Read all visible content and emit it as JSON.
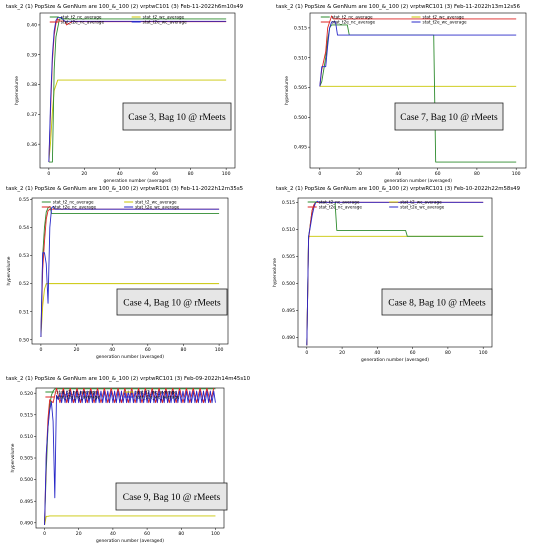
{
  "figure": {
    "legend_labels": [
      "stat_t2_nc_average",
      "stat_t2_wc_average",
      "stat_t2e_nc_average",
      "stat_t2e_wc_average"
    ],
    "colors": {
      "green": "#2e8b2e",
      "yellow": "#c9c600",
      "red": "#dd2222",
      "blue": "#2828c8"
    }
  },
  "chart_data": [
    {
      "type": "line",
      "title": "task_2 (1) PopSize & GenNum are 100_&_100 (2) vrptwC101 (3) Feb-11-2022h6m10s49",
      "xlabel": "generation number (averaged)",
      "ylabel": "hypervolume",
      "xlim": [
        -5,
        105
      ],
      "ylim": [
        0.352,
        0.404
      ],
      "xticks": [
        0,
        20,
        40,
        60,
        80,
        100
      ],
      "yticks": [
        0.36,
        0.37,
        0.38,
        0.39,
        0.4
      ],
      "xtick_labels": [
        "0",
        "20",
        "40",
        "60",
        "80",
        "100"
      ],
      "ytick_labels": [
        "0.36",
        "0.37",
        "0.38",
        "0.39",
        "0.40"
      ],
      "annotation": "Case 3, Bag 10 @ rMeets",
      "series": [
        {
          "name": "stat_t2_nc_average",
          "color": "green",
          "x": [
            0,
            2,
            3,
            4,
            6,
            100
          ],
          "y": [
            0.354,
            0.354,
            0.385,
            0.396,
            0.402,
            0.402
          ]
        },
        {
          "name": "stat_t2_wc_average",
          "color": "yellow",
          "x": [
            0,
            1,
            2,
            3,
            5,
            100
          ],
          "y": [
            0.354,
            0.361,
            0.371,
            0.378,
            0.3815,
            0.3815
          ]
        },
        {
          "name": "stat_t2e_nc_average",
          "color": "red",
          "x": [
            0,
            1,
            2,
            3,
            4,
            5,
            6,
            9,
            10,
            13,
            100
          ],
          "y": [
            0.354,
            0.372,
            0.388,
            0.3965,
            0.4005,
            0.402,
            0.4013,
            0.4013,
            0.4,
            0.4011,
            0.4011
          ]
        },
        {
          "name": "stat_t2e_wc_average",
          "color": "blue",
          "x": [
            0,
            1,
            2,
            3,
            4,
            5,
            7,
            8,
            9,
            100
          ],
          "y": [
            0.354,
            0.375,
            0.39,
            0.398,
            0.4015,
            0.4025,
            0.4025,
            0.4018,
            0.4012,
            0.4012
          ]
        }
      ]
    },
    {
      "type": "line",
      "title": "task_2 (1) PopSize & GenNum are 100_&_100 (2) vrptwRC101 (3) Feb-11-2022h13m12s56",
      "xlabel": "generation number (averaged)",
      "ylabel": "hypervolume",
      "xlim": [
        -5,
        105
      ],
      "ylim": [
        0.4915,
        0.5175
      ],
      "xticks": [
        0,
        20,
        40,
        60,
        80,
        100
      ],
      "yticks": [
        0.495,
        0.5,
        0.505,
        0.51,
        0.515
      ],
      "xtick_labels": [
        "0",
        "20",
        "40",
        "60",
        "80",
        "100"
      ],
      "ytick_labels": [
        "0.495",
        "0.500",
        "0.505",
        "0.510",
        "0.515"
      ],
      "annotation": "Case 7, Bag 10 @ rMeets",
      "series": [
        {
          "name": "stat_t2_nc_average",
          "color": "green",
          "x": [
            0,
            1,
            2,
            3,
            4,
            5,
            6,
            14,
            15,
            58,
            59,
            100
          ],
          "y": [
            0.5052,
            0.506,
            0.508,
            0.51,
            0.513,
            0.515,
            0.5155,
            0.5155,
            0.5138,
            0.5138,
            0.4925,
            0.4925
          ]
        },
        {
          "name": "stat_t2_wc_average",
          "color": "yellow",
          "x": [
            0,
            100
          ],
          "y": [
            0.5052,
            0.5052
          ]
        },
        {
          "name": "stat_t2e_nc_average",
          "color": "red",
          "x": [
            0,
            1,
            3,
            4,
            6,
            7,
            10,
            100
          ],
          "y": [
            0.5052,
            0.508,
            0.511,
            0.515,
            0.517,
            0.5165,
            0.5165,
            0.5165
          ]
        },
        {
          "name": "stat_t2e_wc_average",
          "color": "blue",
          "x": [
            0,
            1,
            3,
            4,
            5,
            6,
            8,
            9,
            10,
            100
          ],
          "y": [
            0.5052,
            0.5085,
            0.5085,
            0.512,
            0.515,
            0.516,
            0.516,
            0.5138,
            0.5138,
            0.5138
          ]
        }
      ]
    },
    {
      "type": "line",
      "title": "task_2 (1) PopSize & GenNum are 100_&_100 (2) vrptwR101 (3) Feb-11-2022h12m35s5",
      "xlabel": "generation number (averaged)",
      "ylabel": "hypervolume",
      "xlim": [
        -5,
        105
      ],
      "ylim": [
        0.4985,
        0.5505
      ],
      "xticks": [
        0,
        20,
        40,
        60,
        80,
        100
      ],
      "yticks": [
        0.5,
        0.51,
        0.52,
        0.53,
        0.54,
        0.55
      ],
      "xtick_labels": [
        "0",
        "20",
        "40",
        "60",
        "80",
        "100"
      ],
      "ytick_labels": [
        "0.50",
        "0.51",
        "0.52",
        "0.53",
        "0.54",
        "0.55"
      ],
      "annotation": "Case 4, Bag 10 @ rMeets",
      "series": [
        {
          "name": "stat_t2_nc_average",
          "color": "green",
          "x": [
            0,
            1,
            2,
            3,
            4,
            5,
            6,
            100
          ],
          "y": [
            0.501,
            0.53,
            0.54,
            0.5455,
            0.547,
            0.5475,
            0.545,
            0.545
          ]
        },
        {
          "name": "stat_t2_wc_average",
          "color": "yellow",
          "x": [
            0,
            1,
            2,
            3,
            100
          ],
          "y": [
            0.501,
            0.512,
            0.518,
            0.52,
            0.52
          ]
        },
        {
          "name": "stat_t2e_nc_average",
          "color": "red",
          "x": [
            0,
            1,
            2,
            3,
            4,
            5,
            100
          ],
          "y": [
            0.501,
            0.525,
            0.535,
            0.543,
            0.546,
            0.5465,
            0.5465
          ]
        },
        {
          "name": "stat_t2e_wc_average",
          "color": "blue",
          "x": [
            0,
            1,
            2,
            3,
            4,
            5,
            6,
            7,
            8,
            100
          ],
          "y": [
            0.501,
            0.531,
            0.531,
            0.527,
            0.513,
            0.54,
            0.547,
            0.5475,
            0.5465,
            0.5465
          ]
        }
      ]
    },
    {
      "type": "line",
      "title": "task_2 (1) PopSize & GenNum are 100_&_100 (2) vrptwRC101 (3) Feb-10-2022h22m58s49",
      "xlabel": "generation number (averaged)",
      "ylabel": "hypervolume",
      "xlim": [
        -5,
        105
      ],
      "ylim": [
        0.4882,
        0.5158
      ],
      "xticks": [
        0,
        20,
        40,
        60,
        80,
        100
      ],
      "yticks": [
        0.49,
        0.495,
        0.5,
        0.505,
        0.51,
        0.515
      ],
      "xtick_labels": [
        "0",
        "20",
        "40",
        "60",
        "80",
        "100"
      ],
      "ytick_labels": [
        "0.490",
        "0.495",
        "0.500",
        "0.505",
        "0.510",
        "0.515"
      ],
      "annotation": "Case 8, Bag 10 @ rMeets",
      "series": [
        {
          "name": "stat_t2_nc_average",
          "color": "green",
          "x": [
            0,
            1,
            2,
            3,
            4,
            5,
            16,
            17,
            56,
            57,
            100
          ],
          "y": [
            0.4885,
            0.5085,
            0.511,
            0.5135,
            0.5145,
            0.515,
            0.515,
            0.5098,
            0.5098,
            0.5087,
            0.5087
          ]
        },
        {
          "name": "stat_t2_wc_average",
          "color": "yellow",
          "x": [
            0,
            1,
            100
          ],
          "y": [
            0.4885,
            0.5087,
            0.5087
          ]
        },
        {
          "name": "stat_t2e_nc_average",
          "color": "red",
          "x": [
            0,
            1,
            2,
            3,
            4,
            5,
            100
          ],
          "y": [
            0.4885,
            0.508,
            0.511,
            0.5135,
            0.5145,
            0.515,
            0.515
          ]
        },
        {
          "name": "stat_t2e_wc_average",
          "color": "blue",
          "x": [
            0,
            1,
            2,
            3,
            4,
            5,
            6,
            7,
            100
          ],
          "y": [
            0.4885,
            0.5087,
            0.5105,
            0.5125,
            0.514,
            0.515,
            0.5152,
            0.515,
            0.515
          ]
        }
      ]
    },
    {
      "type": "line",
      "title": "task_2 (1) PopSize & GenNum are 100_&_100 (2) vrptwRC101 (3) Feb-09-2022h14m45s10",
      "xlabel": "generation number (averaged)",
      "ylabel": "hypervolume",
      "xlim": [
        -5,
        105
      ],
      "ylim": [
        0.4888,
        0.5212
      ],
      "xticks": [
        0,
        20,
        40,
        60,
        80,
        100
      ],
      "yticks": [
        0.49,
        0.495,
        0.5,
        0.505,
        0.51,
        0.515,
        0.52
      ],
      "xtick_labels": [
        "0",
        "20",
        "40",
        "60",
        "80",
        "100"
      ],
      "ytick_labels": [
        "0.490",
        "0.495",
        "0.500",
        "0.505",
        "0.510",
        "0.515",
        "0.520"
      ],
      "annotation": "Case 9, Bag 10 @ rMeets",
      "series": [
        {
          "name": "stat_t2_nc_average",
          "color": "green",
          "x": [
            0,
            1,
            2,
            3,
            4,
            5,
            6,
            100
          ],
          "y": [
            0.4895,
            0.502,
            0.512,
            0.517,
            0.5195,
            0.5205,
            0.521,
            0.521
          ]
        },
        {
          "name": "stat_t2_wc_average",
          "color": "yellow",
          "x": [
            0,
            1,
            2,
            3,
            100
          ],
          "y": [
            0.4895,
            0.4915,
            0.4915,
            0.4916,
            0.4916
          ]
        },
        {
          "name": "stat_t2e_nc_average",
          "color": "red",
          "osc": {
            "x0": 3,
            "x1": 100,
            "period": 4,
            "lo": 0.5178,
            "hi": 0.5212
          },
          "x": [
            0,
            1,
            2,
            3
          ],
          "y": [
            0.4895,
            0.505,
            0.514,
            0.5185
          ]
        },
        {
          "name": "stat_t2e_wc_average",
          "color": "blue",
          "osc": {
            "x0": 9,
            "x1": 100,
            "period": 2,
            "lo": 0.5178,
            "hi": 0.5205
          },
          "x": [
            0,
            1,
            2,
            3,
            4,
            5,
            6,
            7,
            8,
            9
          ],
          "y": [
            0.4895,
            0.506,
            0.512,
            0.516,
            0.518,
            0.5135,
            0.4958,
            0.5195,
            0.5185,
            0.52
          ]
        }
      ]
    }
  ]
}
